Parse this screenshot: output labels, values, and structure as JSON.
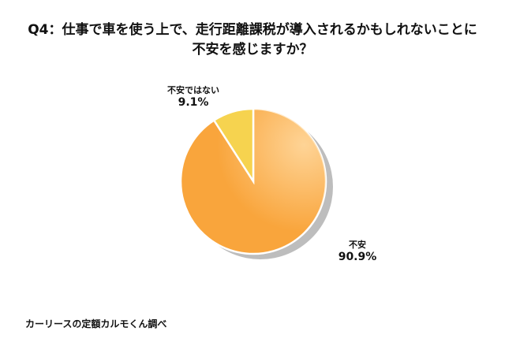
{
  "chart_data": {
    "type": "pie",
    "title": "Q4：仕事で車を使う上で、走行距離課税が導入されるかもしれないことに不安を感じますか？",
    "title_lines": [
      "Q4：仕事で車を使う上で、走行距離課税が導入されるかもしれないことに",
      "不安を感じますか？"
    ],
    "slices": [
      {
        "label": "不安",
        "value": 90.9,
        "value_label": "90.9%",
        "color": "#F9A53C"
      },
      {
        "label": "不安ではない",
        "value": 9.1,
        "value_label": "9.1%",
        "color": "#F6D34F"
      }
    ],
    "start": "top",
    "direction": "clockwise",
    "legend": "none"
  },
  "source": "カーリースの定額カルモくん調べ"
}
